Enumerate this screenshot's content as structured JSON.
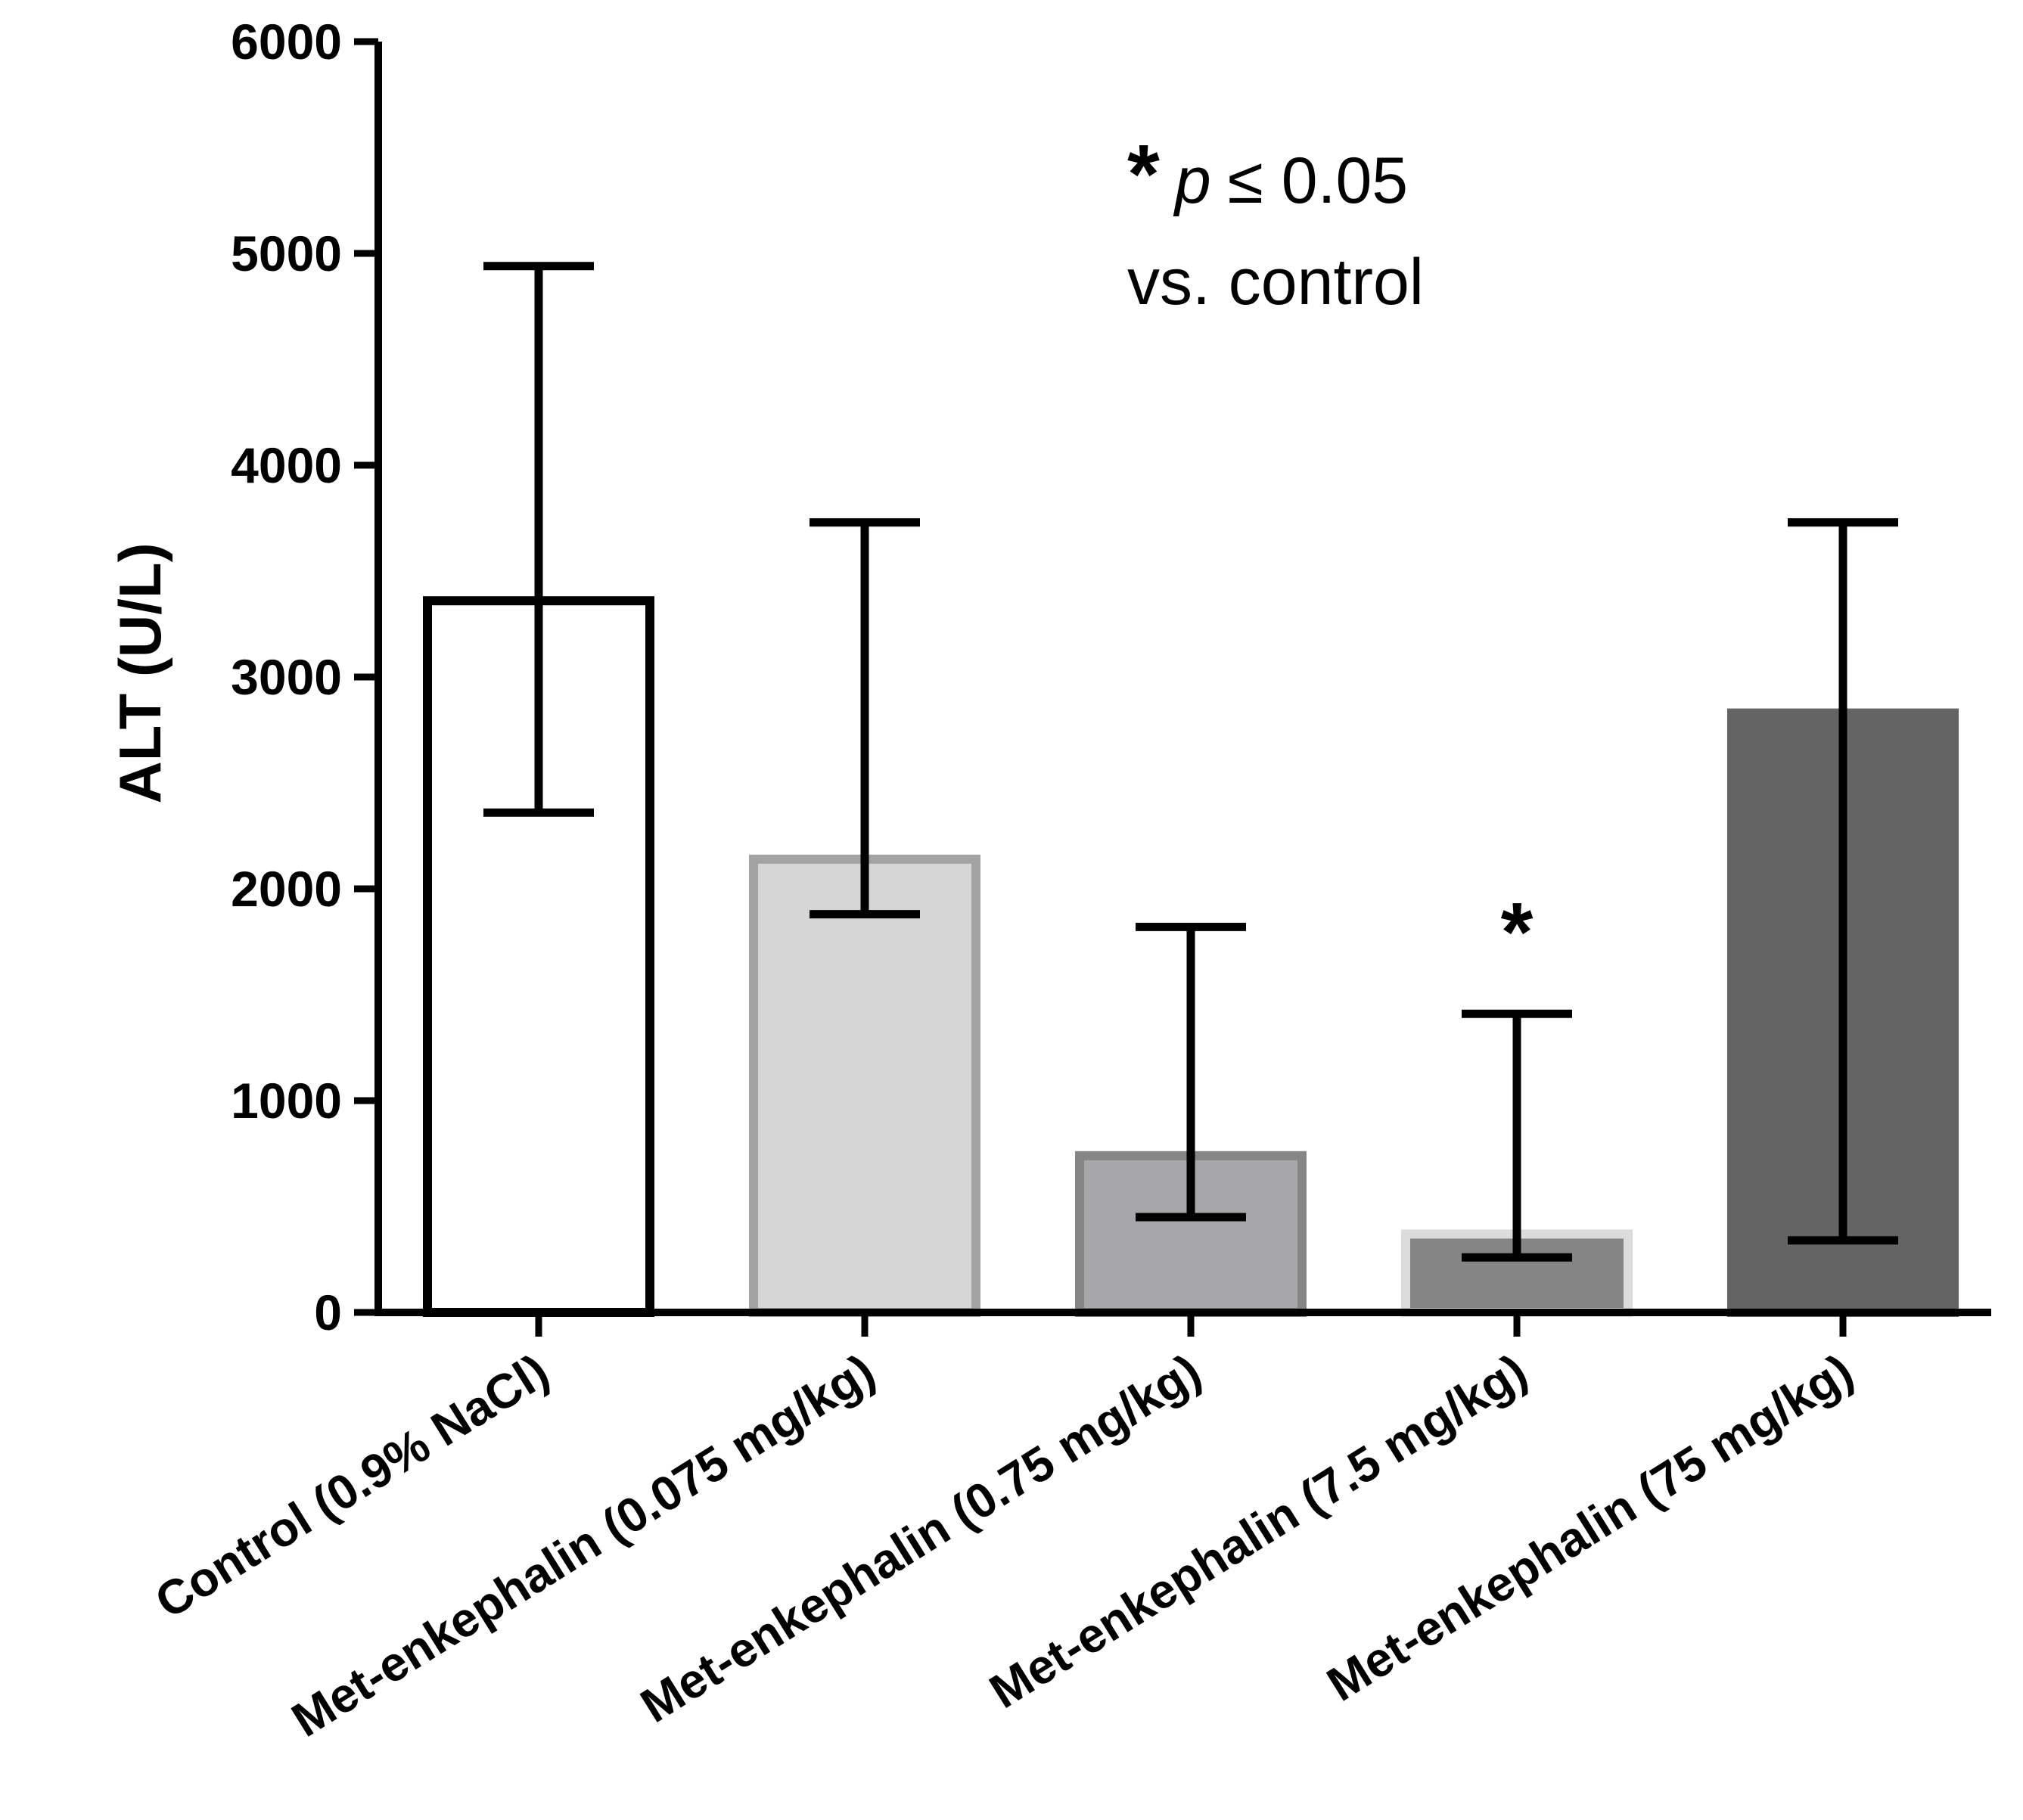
{
  "chart_data": {
    "type": "bar",
    "title": "",
    "xlabel": "",
    "ylabel": "ALT (U/L)",
    "ylim": [
      0,
      6000
    ],
    "yticks": [
      0,
      1000,
      2000,
      3000,
      4000,
      5000,
      6000
    ],
    "ytick_labels": [
      "0",
      "1000",
      "2000",
      "3000",
      "4000",
      "5000",
      "6000"
    ],
    "grid": false,
    "categories": [
      "Control (0.9% NaCl)",
      "Met-enkephalin (0.075 mg/kg)",
      "Met-enkephalin (0.75 mg/kg)",
      "Met-enkephalin (7.5 mg/kg)",
      "Met-enkephalin (75 mg/kg)"
    ],
    "values": [
      3360,
      2140,
      740,
      370,
      2830
    ],
    "error_upper": [
      4940,
      3730,
      1820,
      1410,
      3730
    ],
    "error_lower": [
      2360,
      1880,
      450,
      260,
      340
    ],
    "significance": [
      "",
      "",
      "",
      "*",
      ""
    ],
    "bar_fill_colors": [
      "#ffffff",
      "#d6d6d6",
      "#a7a7aa",
      "#858585",
      "#646464"
    ],
    "bar_edge_colors": [
      "#000000",
      "#a3a3a3",
      "#868686",
      "#dcdcdc",
      "#646464"
    ],
    "annotation": {
      "star": "*",
      "p_symbol": "p",
      "p_text": "≤ 0.05",
      "line2": "vs. control"
    }
  }
}
